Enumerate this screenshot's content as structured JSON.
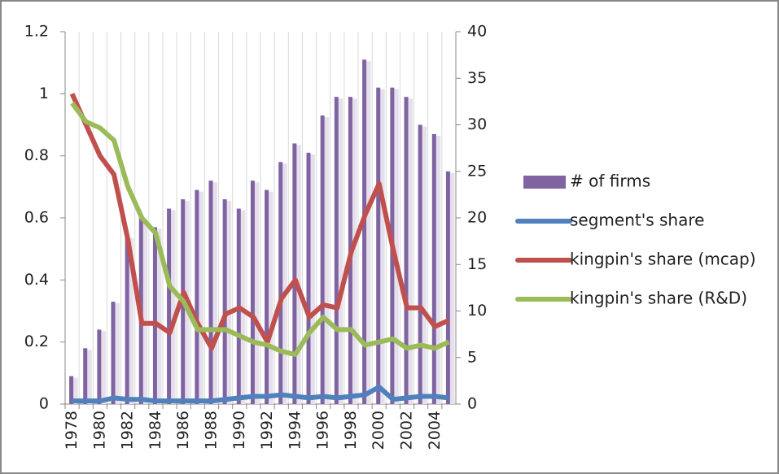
{
  "chart_data": {
    "type": "bar-line",
    "categories": [
      "1978",
      null,
      "1980",
      null,
      "1982",
      null,
      "1984",
      null,
      "1986",
      null,
      "1988",
      null,
      "1990",
      null,
      "1992",
      null,
      "1994",
      null,
      "1996",
      null,
      "1998",
      null,
      "2000",
      null,
      "2002",
      null,
      "2004",
      null
    ],
    "series": [
      {
        "name": "# of firms",
        "type": "bar",
        "axis": "y2",
        "color": "#8064a2",
        "values": [
          3,
          6,
          8,
          11,
          18,
          20,
          19,
          21,
          22,
          23,
          24,
          22,
          21,
          24,
          23,
          26,
          28,
          27,
          31,
          33,
          33,
          37,
          34,
          34,
          33,
          30,
          29,
          25
        ]
      },
      {
        "name": "segment's share",
        "type": "line",
        "color": "#4f81bd",
        "values": [
          0.01,
          0.01,
          0.01,
          0.02,
          0.015,
          0.015,
          0.01,
          0.01,
          0.01,
          0.01,
          0.01,
          0.015,
          0.02,
          0.025,
          0.025,
          0.03,
          0.025,
          0.02,
          0.025,
          0.02,
          0.025,
          0.03,
          0.055,
          0.015,
          0.02,
          0.025,
          0.025,
          0.02
        ]
      },
      {
        "name": "kingpin's share (mcap)",
        "type": "line",
        "color": "#c0504d",
        "values": [
          1.0,
          0.9,
          0.8,
          0.74,
          0.53,
          0.26,
          0.26,
          0.23,
          0.36,
          0.26,
          0.18,
          0.29,
          0.31,
          0.28,
          0.2,
          0.34,
          0.4,
          0.28,
          0.32,
          0.31,
          0.49,
          0.61,
          0.71,
          0.5,
          0.31,
          0.31,
          0.25,
          0.27
        ]
      },
      {
        "name": "kingpin's share (R&D)",
        "type": "line",
        "color": "#9bbb59",
        "values": [
          0.97,
          0.91,
          0.89,
          0.85,
          0.7,
          0.6,
          0.55,
          0.38,
          0.33,
          0.24,
          0.24,
          0.24,
          0.22,
          0.2,
          0.19,
          0.17,
          0.16,
          0.23,
          0.28,
          0.24,
          0.24,
          0.19,
          0.2,
          0.21,
          0.18,
          0.19,
          0.18,
          0.2
        ]
      }
    ],
    "ylim": [
      0,
      1.2
    ],
    "yticks": [
      0,
      0.2,
      0.4,
      0.6,
      0.8,
      1,
      1.2
    ],
    "y2lim": [
      0,
      40
    ],
    "y2ticks": [
      0,
      5,
      10,
      15,
      20,
      25,
      30,
      35,
      40
    ],
    "x_grid": true,
    "legend": "right"
  }
}
